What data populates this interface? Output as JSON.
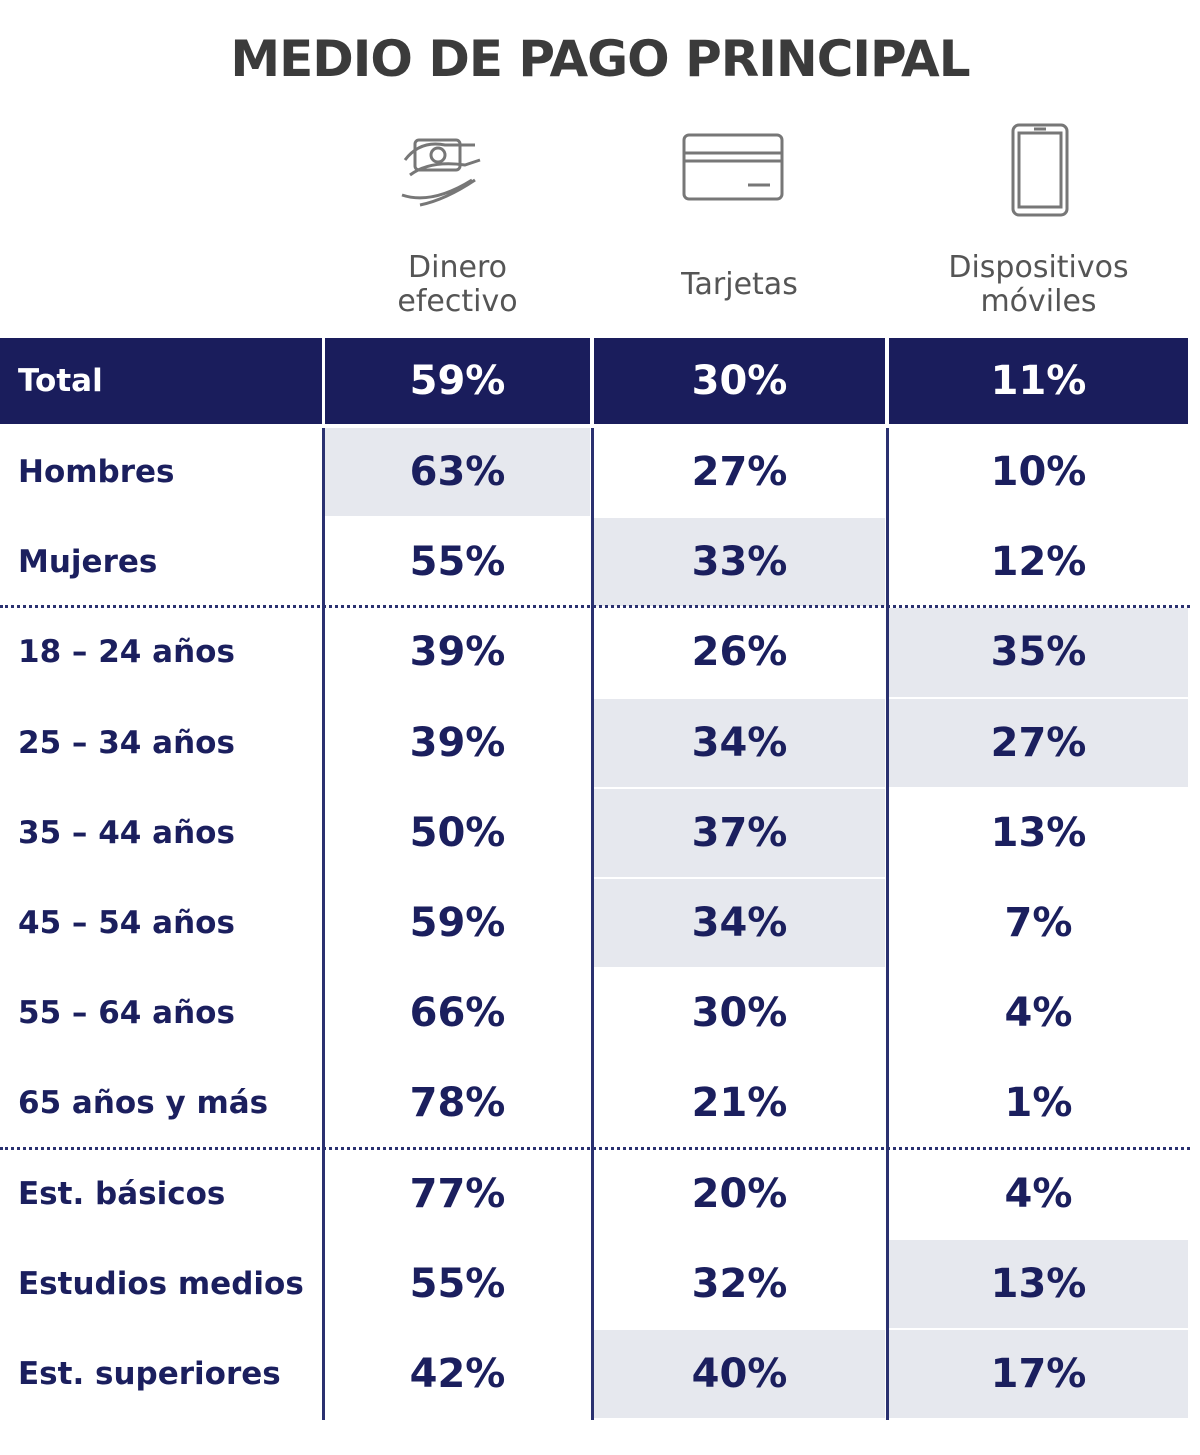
{
  "header": {
    "title": "MEDIO DE PAGO PRINCIPAL"
  },
  "table": {
    "columns": [
      "Dinero\nefectivo",
      "Tarjetas",
      "Dispositivos\nmóviles"
    ],
    "total": {
      "label": "Total",
      "values": [
        "59%",
        "30%",
        "11%"
      ]
    },
    "sections": [
      [
        {
          "label": "Hombres",
          "values": [
            "63%",
            "27%",
            "10%"
          ],
          "shaded": [
            true,
            false,
            false
          ]
        },
        {
          "label": "Mujeres",
          "values": [
            "55%",
            "33%",
            "12%"
          ],
          "shaded": [
            false,
            true,
            false
          ]
        }
      ],
      [
        {
          "label": "18 – 24 años",
          "values": [
            "39%",
            "26%",
            "35%"
          ],
          "shaded": [
            false,
            false,
            true
          ]
        },
        {
          "label": "25 – 34 años",
          "values": [
            "39%",
            "34%",
            "27%"
          ],
          "shaded": [
            false,
            true,
            true
          ]
        },
        {
          "label": "35 – 44 años",
          "values": [
            "50%",
            "37%",
            "13%"
          ],
          "shaded": [
            false,
            true,
            false
          ]
        },
        {
          "label": "45 – 54 años",
          "values": [
            "59%",
            "34%",
            "7%"
          ],
          "shaded": [
            false,
            true,
            false
          ]
        },
        {
          "label": "55 – 64 años",
          "values": [
            "66%",
            "30%",
            "4%"
          ],
          "shaded": [
            false,
            false,
            false
          ]
        },
        {
          "label": "65 años y más",
          "values": [
            "78%",
            "21%",
            "1%"
          ],
          "shaded": [
            false,
            false,
            false
          ]
        }
      ],
      [
        {
          "label": "Est. básicos",
          "values": [
            "77%",
            "20%",
            "4%"
          ],
          "shaded": [
            false,
            false,
            false
          ]
        },
        {
          "label": "Estudios medios",
          "values": [
            "55%",
            "32%",
            "13%"
          ],
          "shaded": [
            false,
            false,
            true
          ]
        },
        {
          "label": "Est. superiores",
          "values": [
            "42%",
            "40%",
            "17%"
          ],
          "shaded": [
            false,
            true,
            true
          ]
        }
      ]
    ]
  }
}
